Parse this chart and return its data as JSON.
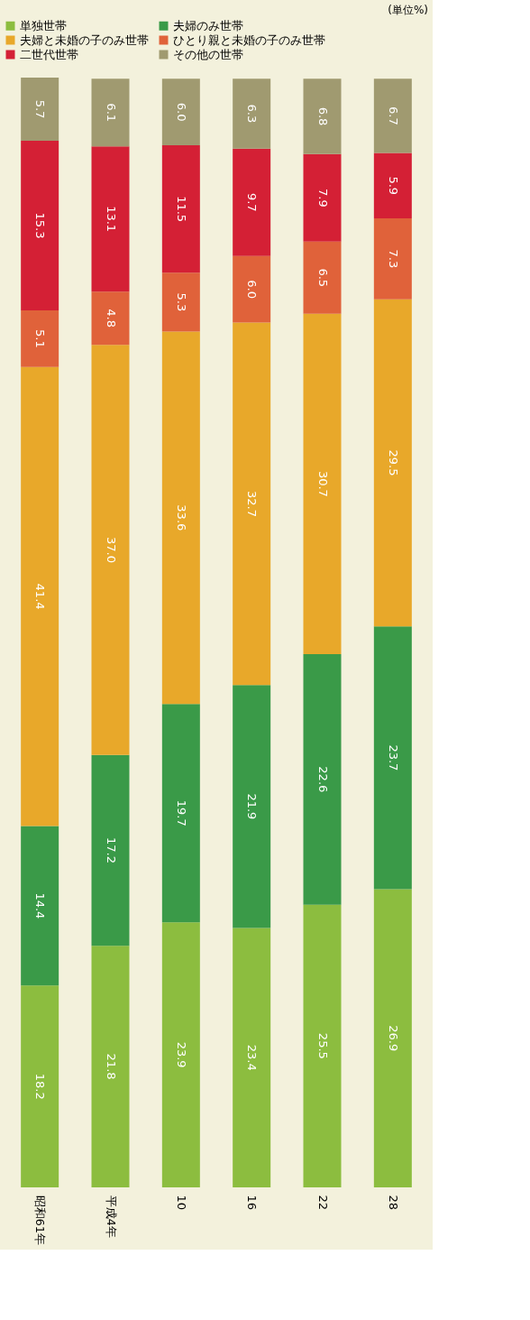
{
  "chart_data": {
    "type": "bar",
    "stacked": true,
    "legend": "top",
    "grid": false,
    "annotations": [
      "(単位%)"
    ],
    "categories": [
      "昭和61年",
      "平成4年",
      "10",
      "16",
      "22",
      "28"
    ],
    "series": [
      {
        "name": "単独世帯",
        "color": "#8cbd3f",
        "values": [
          18.2,
          21.8,
          23.9,
          23.4,
          25.5,
          26.9
        ],
        "value_labels": [
          "18.2",
          "21.8",
          "23.9",
          "23.4",
          "25.5",
          "26.9"
        ]
      },
      {
        "name": "夫婦のみ世帯",
        "color": "#3a9a48",
        "values": [
          14.4,
          17.2,
          19.7,
          21.9,
          22.6,
          23.7
        ],
        "value_labels": [
          "14.4",
          "17.2",
          "19.7",
          "21.9",
          "22.6",
          "23.7"
        ]
      },
      {
        "name": "夫婦と未婚の子のみ世帯",
        "color": "#e8a82a",
        "values": [
          41.4,
          37.0,
          33.6,
          32.7,
          30.7,
          29.5
        ],
        "value_labels": [
          "41.4",
          "37.0",
          "33.6",
          "32.7",
          "30.7",
          "29.5"
        ]
      },
      {
        "name": "ひとり親と未婚の子のみ世帯",
        "color": "#e0623a",
        "values": [
          5.1,
          4.8,
          5.3,
          6.0,
          6.5,
          7.3
        ],
        "value_labels": [
          "5.1",
          "4.8",
          "5.3",
          "6.0",
          "6.5",
          "7.3"
        ]
      },
      {
        "name": "二世代世帯",
        "color": "#d42035",
        "values": [
          15.3,
          13.1,
          11.5,
          9.7,
          7.9,
          5.9
        ],
        "value_labels": [
          "15.3",
          "13.1",
          "11.5",
          "9.7",
          "7.9",
          "5.9"
        ]
      },
      {
        "name": "その他の世帯",
        "color": "#a09a70",
        "values": [
          5.7,
          6.1,
          6.0,
          6.3,
          6.8,
          6.7
        ],
        "value_labels": [
          "5.7",
          "6.1",
          "6.0",
          "6.3",
          "6.8",
          "6.7"
        ]
      }
    ]
  }
}
